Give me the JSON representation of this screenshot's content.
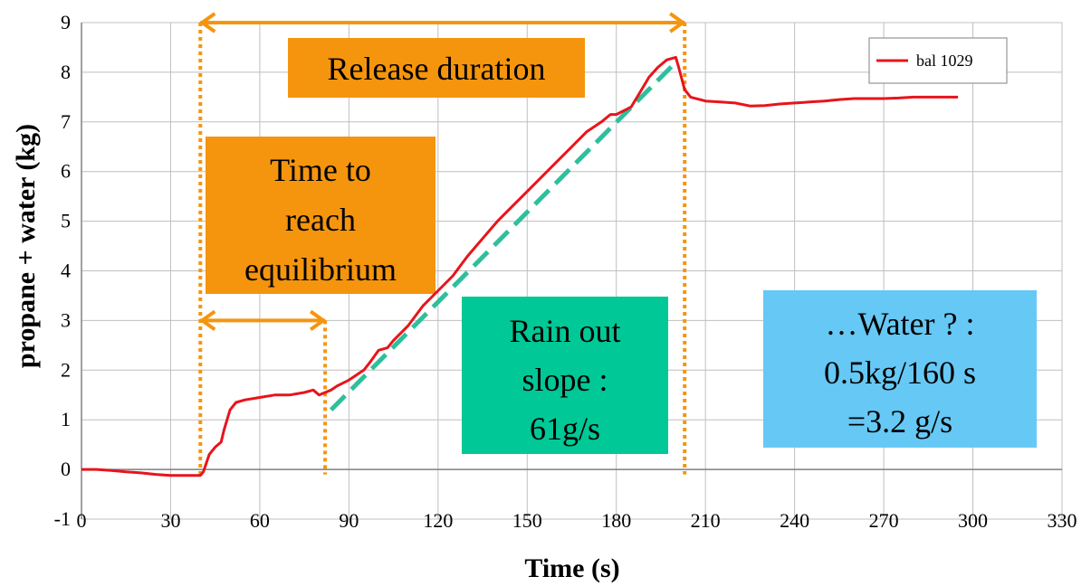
{
  "chart_data": {
    "type": "line",
    "xlabel": "Time (s)",
    "ylabel": "propane + water (kg)",
    "xlim": [
      0,
      330
    ],
    "ylim": [
      -1,
      9
    ],
    "xticks": [
      0,
      30,
      60,
      90,
      120,
      150,
      180,
      210,
      240,
      270,
      300,
      330
    ],
    "yticks": [
      -1,
      0,
      1,
      2,
      3,
      4,
      5,
      6,
      7,
      8,
      9
    ],
    "grid": true,
    "legend": {
      "position": "top-right"
    },
    "series": [
      {
        "name": "bal 1029",
        "color": "#e8141b",
        "x": [
          0,
          5,
          10,
          15,
          20,
          25,
          30,
          35,
          40,
          41,
          43,
          45,
          47,
          48,
          50,
          52,
          55,
          60,
          65,
          70,
          75,
          78,
          80,
          82,
          84,
          86,
          90,
          95,
          97,
          100,
          103,
          105,
          110,
          115,
          120,
          125,
          130,
          135,
          140,
          145,
          150,
          155,
          160,
          165,
          170,
          175,
          178,
          180,
          185,
          188,
          191,
          194,
          197,
          200,
          201,
          203,
          205,
          210,
          215,
          220,
          225,
          230,
          235,
          240,
          245,
          250,
          255,
          260,
          265,
          270,
          275,
          280,
          285,
          290,
          295
        ],
        "y": [
          0,
          0.0,
          -0.02,
          -0.05,
          -0.07,
          -0.1,
          -0.12,
          -0.12,
          -0.12,
          -0.05,
          0.3,
          0.45,
          0.55,
          0.8,
          1.2,
          1.35,
          1.4,
          1.45,
          1.5,
          1.5,
          1.55,
          1.6,
          1.5,
          1.55,
          1.6,
          1.68,
          1.8,
          2.0,
          2.15,
          2.4,
          2.45,
          2.6,
          2.9,
          3.3,
          3.6,
          3.9,
          4.3,
          4.65,
          5.0,
          5.3,
          5.6,
          5.9,
          6.2,
          6.5,
          6.8,
          7.0,
          7.15,
          7.15,
          7.3,
          7.6,
          7.9,
          8.1,
          8.25,
          8.3,
          8.1,
          7.65,
          7.5,
          7.42,
          7.4,
          7.38,
          7.32,
          7.33,
          7.36,
          7.38,
          7.4,
          7.42,
          7.45,
          7.47,
          7.47,
          7.47,
          7.48,
          7.5,
          7.5,
          7.5,
          7.5
        ]
      }
    ],
    "fit_line": {
      "color": "#2ebf9c",
      "x": [
        84,
        200
      ],
      "y": [
        1.2,
        8.2
      ]
    },
    "annotations": {
      "release_duration": {
        "label": "Release duration",
        "bg": "#f5950d",
        "x_start": 40,
        "x_end": 203
      },
      "equilibrium": {
        "label_lines": [
          "Time to",
          "reach",
          "equilibrium"
        ],
        "bg": "#f5950d",
        "x_start": 40,
        "x_end": 82
      },
      "rain_out": {
        "label_lines": [
          "Rain out",
          "slope :",
          "61g/s"
        ],
        "bg": "#00c896"
      },
      "water": {
        "label_lines": [
          "…Water ? :",
          "0.5kg/160 s",
          "=3.2 g/s"
        ],
        "bg": "#66c8f5"
      }
    },
    "colors": {
      "vline": "#f5950d",
      "grid": "#bfbfbf",
      "axis": "#808080"
    }
  }
}
